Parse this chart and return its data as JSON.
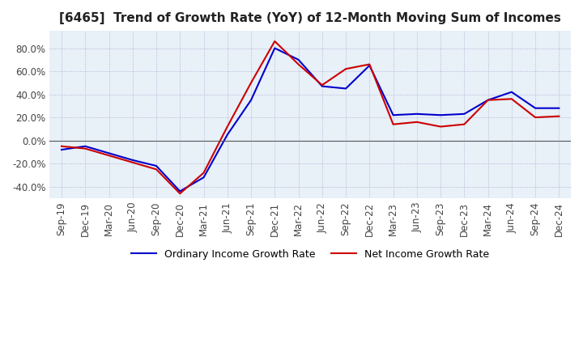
{
  "title": "[6465]  Trend of Growth Rate (YoY) of 12-Month Moving Sum of Incomes",
  "ylim": [
    -50,
    95
  ],
  "yticks": [
    -40,
    -20,
    0,
    20,
    40,
    60,
    80
  ],
  "plot_bg_color": "#e8f0f8",
  "fig_bg_color": "#ffffff",
  "grid_color": "#aaaacc",
  "zero_line_color": "#555555",
  "x_labels": [
    "Sep-19",
    "Dec-19",
    "Mar-20",
    "Jun-20",
    "Sep-20",
    "Dec-20",
    "Mar-21",
    "Jun-21",
    "Sep-21",
    "Dec-21",
    "Mar-22",
    "Jun-22",
    "Sep-22",
    "Dec-22",
    "Mar-23",
    "Jun-23",
    "Sep-23",
    "Dec-23",
    "Mar-24",
    "Jun-24",
    "Sep-24",
    "Dec-24"
  ],
  "ordinary_income": [
    -8,
    -5,
    -11,
    -17,
    -22,
    -44,
    -32,
    5,
    35,
    80,
    70,
    47,
    45,
    65,
    22,
    23,
    22,
    23,
    35,
    42,
    28,
    28
  ],
  "net_income": [
    -5,
    -7,
    -13,
    -19,
    -25,
    -46,
    -28,
    12,
    50,
    86,
    66,
    48,
    62,
    66,
    14,
    16,
    12,
    14,
    35,
    36,
    20,
    21
  ],
  "ordinary_color": "#0000cc",
  "net_color": "#cc0000",
  "ordinary_label": "Ordinary Income Growth Rate",
  "net_label": "Net Income Growth Rate",
  "line_width": 1.5,
  "title_fontsize": 11,
  "tick_fontsize": 8.5,
  "legend_fontsize": 9
}
